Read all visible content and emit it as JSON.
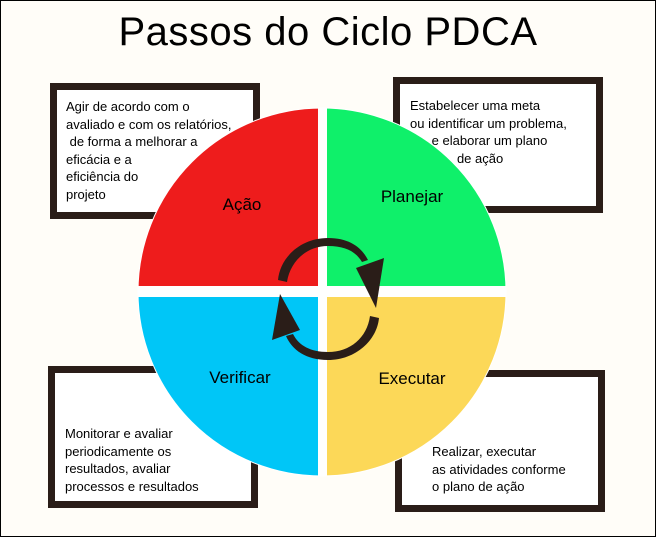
{
  "title": "Passos do Ciclo PDCA",
  "quadrants": {
    "act": {
      "label": "Ação",
      "color": "#ee1c1c"
    },
    "plan": {
      "label": "Planejar",
      "color": "#0ff06a"
    },
    "check": {
      "label": "Verificar",
      "color": "#00c6f7"
    },
    "do": {
      "label": "Executar",
      "color": "#fcd858"
    }
  },
  "notes": {
    "act": "Agir de acordo com o\navaliado e com os relatórios,\n de forma a melhorar a\neficácia e a\neficiência do\nprojeto",
    "plan": "Estabelecer uma meta\nou identificar um problema,\n      e elaborar um plano\n             de ação",
    "check": "Monitorar e avaliar\nperiodicamente os\nresultados, avaliar\nprocessos e resultados",
    "do": "Realizar, executar\nas atividades conforme\no plano de ação"
  },
  "colors": {
    "box_border": "#2a1d18",
    "arrow": "#2a1d18",
    "divider": "#ffffff"
  },
  "icons": {
    "cycle": "circular-arrows-icon"
  }
}
